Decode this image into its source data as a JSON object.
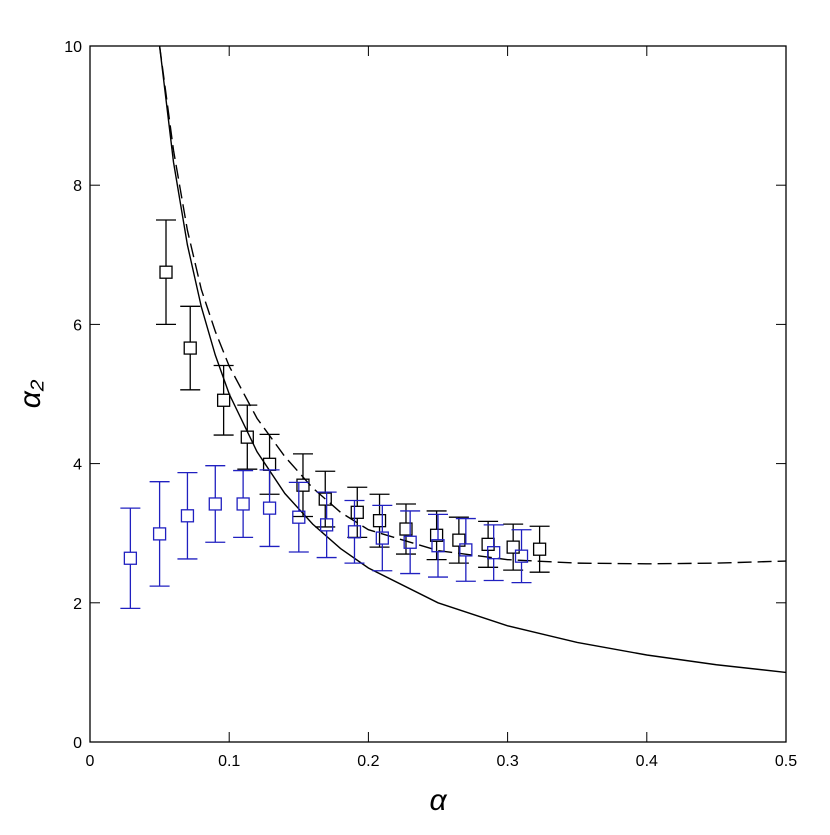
{
  "chart_data": {
    "type": "scatter",
    "xlabel": "α",
    "ylabel": "α₂",
    "xlim": [
      0,
      0.5
    ],
    "ylim": [
      0,
      10
    ],
    "xticks": [
      0,
      0.1,
      0.2,
      0.3,
      0.4,
      0.5
    ],
    "yticks": [
      0,
      2,
      4,
      6,
      8,
      10
    ],
    "series": [
      {
        "color": "#000000",
        "x": [
          0.0546,
          0.072,
          0.096,
          0.113,
          0.129,
          0.153,
          0.169,
          0.192,
          0.208,
          0.227,
          0.249,
          0.265,
          0.286,
          0.304,
          0.323
        ],
        "values": [
          6.75,
          5.66,
          4.91,
          4.38,
          3.99,
          3.69,
          3.49,
          3.3,
          3.18,
          3.06,
          2.97,
          2.9,
          2.84,
          2.8,
          2.77
        ],
        "errors": [
          0.75,
          0.6,
          0.5,
          0.46,
          0.43,
          0.45,
          0.4,
          0.36,
          0.38,
          0.36,
          0.35,
          0.33,
          0.33,
          0.33,
          0.33
        ]
      },
      {
        "color": "#2020c0",
        "x": [
          0.029,
          0.05,
          0.07,
          0.09,
          0.11,
          0.129,
          0.15,
          0.17,
          0.19,
          0.21,
          0.23,
          0.25,
          0.27,
          0.29,
          0.31
        ],
        "values": [
          2.64,
          2.99,
          3.25,
          3.42,
          3.42,
          3.36,
          3.23,
          3.12,
          3.02,
          2.93,
          2.87,
          2.82,
          2.76,
          2.72,
          2.67
        ],
        "errors": [
          0.72,
          0.75,
          0.62,
          0.55,
          0.48,
          0.55,
          0.5,
          0.47,
          0.45,
          0.47,
          0.45,
          0.45,
          0.45,
          0.4,
          0.38
        ]
      }
    ],
    "curves": [
      {
        "style": "solid",
        "color": "#000000",
        "x": [
          0.05,
          0.06,
          0.07,
          0.08,
          0.09,
          0.1,
          0.12,
          0.14,
          0.16,
          0.18,
          0.2,
          0.25,
          0.3,
          0.35,
          0.4,
          0.45,
          0.5
        ],
        "values": [
          10,
          8.33,
          7.14,
          6.25,
          5.56,
          5,
          4.17,
          3.57,
          3.13,
          2.78,
          2.5,
          2,
          1.67,
          1.43,
          1.25,
          1.11,
          1
        ]
      },
      {
        "style": "dashed",
        "color": "#000000",
        "x": [
          0.05,
          0.06,
          0.07,
          0.08,
          0.09,
          0.1,
          0.12,
          0.14,
          0.16,
          0.18,
          0.2,
          0.25,
          0.3,
          0.35,
          0.4,
          0.45,
          0.5
        ],
        "values": [
          10,
          8.5,
          7.35,
          6.5,
          5.9,
          5.4,
          4.65,
          4.1,
          3.65,
          3.3,
          3.05,
          2.75,
          2.62,
          2.57,
          2.56,
          2.57,
          2.6
        ]
      }
    ]
  }
}
